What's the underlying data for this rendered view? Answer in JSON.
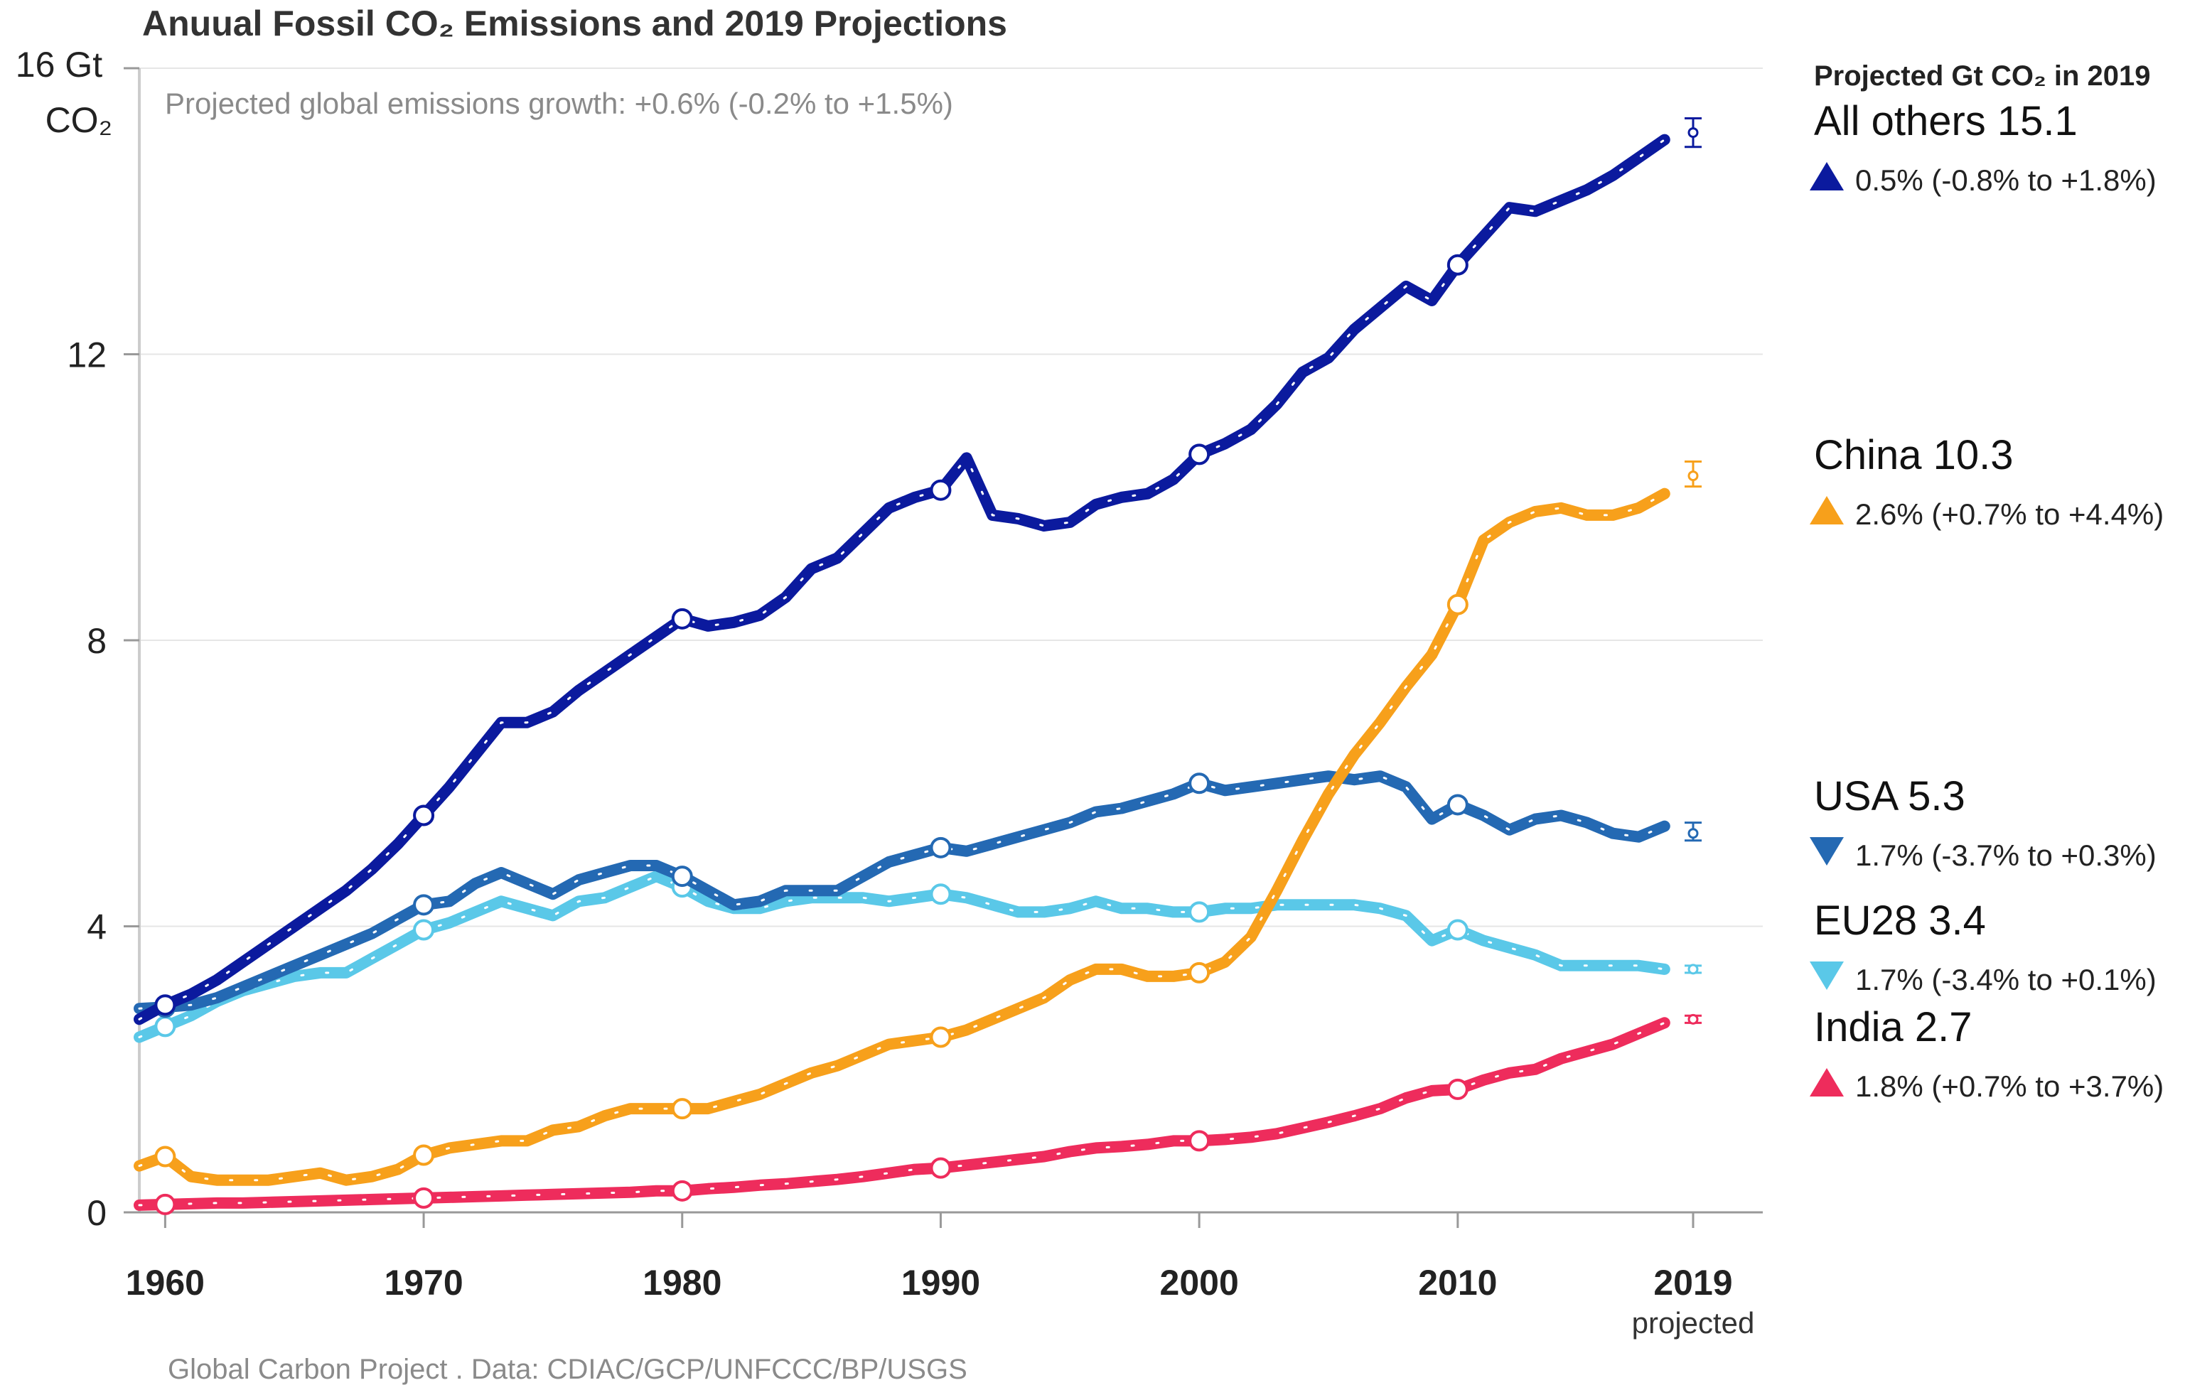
{
  "chart_data": {
    "type": "line",
    "title": "Anuual Fossil CO₂ Emissions and 2019 Projections",
    "subtitle": "Projected global emissions growth: +0.6% (-0.2% to +1.5%)",
    "y_unit_label": "16 Gt CO₂",
    "ylim": [
      0,
      16
    ],
    "y_ticks": [
      0,
      4,
      8,
      12
    ],
    "xlim": [
      1959,
      2019
    ],
    "x_ticks": [
      {
        "value": 1960,
        "label": "1960"
      },
      {
        "value": 1970,
        "label": "1970"
      },
      {
        "value": 1980,
        "label": "1980"
      },
      {
        "value": 1990,
        "label": "1990"
      },
      {
        "value": 2000,
        "label": "2000"
      },
      {
        "value": 2010,
        "label": "2010"
      },
      {
        "value": 2019,
        "label": "2019"
      }
    ],
    "x_sub_label": "projected",
    "source": "Global Carbon Project . Data: CDIAC/GCP/UNFCCC/BP/USGS",
    "grid": true,
    "projection_panel_title": "Projected Gt CO₂ in 2019",
    "series": [
      {
        "name": "All others",
        "projected": "15.1",
        "change": "0.5% (-0.8% to +1.8%)",
        "direction": "up",
        "color": "#0b1a9e",
        "x": [
          1959,
          1960,
          1961,
          1962,
          1963,
          1964,
          1965,
          1966,
          1967,
          1968,
          1969,
          1970,
          1971,
          1972,
          1973,
          1974,
          1975,
          1976,
          1977,
          1978,
          1979,
          1980,
          1981,
          1982,
          1983,
          1984,
          1985,
          1986,
          1987,
          1988,
          1989,
          1990,
          1991,
          1992,
          1993,
          1994,
          1995,
          1996,
          1997,
          1998,
          1999,
          2000,
          2001,
          2002,
          2003,
          2004,
          2005,
          2006,
          2007,
          2008,
          2009,
          2010,
          2011,
          2012,
          2013,
          2014,
          2015,
          2016,
          2017,
          2018
        ],
        "values": [
          2.7,
          2.9,
          3.05,
          3.25,
          3.5,
          3.75,
          4.0,
          4.25,
          4.5,
          4.8,
          5.15,
          5.55,
          5.95,
          6.4,
          6.85,
          6.85,
          7.0,
          7.3,
          7.55,
          7.8,
          8.05,
          8.3,
          8.2,
          8.25,
          8.35,
          8.6,
          9.0,
          9.15,
          9.5,
          9.85,
          10.0,
          10.1,
          10.55,
          9.75,
          9.7,
          9.6,
          9.65,
          9.9,
          10.0,
          10.05,
          10.25,
          10.6,
          10.75,
          10.95,
          11.3,
          11.75,
          11.95,
          12.35,
          12.65,
          12.95,
          12.75,
          13.25,
          13.65,
          14.05,
          14.0,
          14.15,
          14.3,
          14.5,
          14.75,
          15.0
        ],
        "projection": {
          "value": 15.1,
          "low": 14.9,
          "high": 15.3
        }
      },
      {
        "name": "China",
        "projected": "10.3",
        "change": "2.6% (+0.7% to +4.4%)",
        "direction": "up",
        "color": "#f7a01b",
        "x": [
          1959,
          1960,
          1961,
          1962,
          1963,
          1964,
          1965,
          1966,
          1967,
          1968,
          1969,
          1970,
          1971,
          1972,
          1973,
          1974,
          1975,
          1976,
          1977,
          1978,
          1979,
          1980,
          1981,
          1982,
          1983,
          1984,
          1985,
          1986,
          1987,
          1988,
          1989,
          1990,
          1991,
          1992,
          1993,
          1994,
          1995,
          1996,
          1997,
          1998,
          1999,
          2000,
          2001,
          2002,
          2003,
          2004,
          2005,
          2006,
          2007,
          2008,
          2009,
          2010,
          2011,
          2012,
          2013,
          2014,
          2015,
          2016,
          2017,
          2018
        ],
        "values": [
          0.65,
          0.78,
          0.5,
          0.45,
          0.45,
          0.45,
          0.5,
          0.55,
          0.45,
          0.5,
          0.6,
          0.8,
          0.9,
          0.95,
          1.0,
          1.0,
          1.15,
          1.2,
          1.35,
          1.45,
          1.45,
          1.45,
          1.45,
          1.55,
          1.65,
          1.8,
          1.95,
          2.05,
          2.2,
          2.35,
          2.4,
          2.45,
          2.55,
          2.7,
          2.85,
          3.0,
          3.25,
          3.4,
          3.4,
          3.3,
          3.3,
          3.35,
          3.5,
          3.85,
          4.5,
          5.2,
          5.85,
          6.4,
          6.85,
          7.35,
          7.8,
          8.5,
          9.4,
          9.65,
          9.8,
          9.85,
          9.75,
          9.75,
          9.85,
          10.05
        ],
        "projection": {
          "value": 10.3,
          "low": 10.15,
          "high": 10.5
        }
      },
      {
        "name": "USA",
        "projected": "5.3",
        "change": "1.7% (-3.7% to +0.3%)",
        "direction": "down",
        "color": "#2469b3",
        "x": [
          1959,
          1960,
          1961,
          1962,
          1963,
          1964,
          1965,
          1966,
          1967,
          1968,
          1969,
          1970,
          1971,
          1972,
          1973,
          1974,
          1975,
          1976,
          1977,
          1978,
          1979,
          1980,
          1981,
          1982,
          1983,
          1984,
          1985,
          1986,
          1987,
          1988,
          1989,
          1990,
          1991,
          1992,
          1993,
          1994,
          1995,
          1996,
          1997,
          1998,
          1999,
          2000,
          2001,
          2002,
          2003,
          2004,
          2005,
          2006,
          2007,
          2008,
          2009,
          2010,
          2011,
          2012,
          2013,
          2014,
          2015,
          2016,
          2017,
          2018
        ],
        "values": [
          2.85,
          2.87,
          2.9,
          3.0,
          3.15,
          3.3,
          3.45,
          3.6,
          3.75,
          3.9,
          4.1,
          4.3,
          4.35,
          4.6,
          4.75,
          4.6,
          4.45,
          4.65,
          4.75,
          4.85,
          4.85,
          4.7,
          4.5,
          4.3,
          4.35,
          4.5,
          4.5,
          4.5,
          4.7,
          4.9,
          5.0,
          5.1,
          5.05,
          5.15,
          5.25,
          5.35,
          5.45,
          5.6,
          5.65,
          5.75,
          5.85,
          6.0,
          5.9,
          5.95,
          6.0,
          6.05,
          6.1,
          6.05,
          6.1,
          5.95,
          5.5,
          5.7,
          5.55,
          5.35,
          5.5,
          5.55,
          5.45,
          5.3,
          5.25,
          5.4
        ],
        "projection": {
          "value": 5.3,
          "low": 5.2,
          "high": 5.45
        }
      },
      {
        "name": "EU28",
        "projected": "3.4",
        "change": "1.7% (-3.4% to +0.1%)",
        "direction": "down",
        "color": "#5ac8e8",
        "x": [
          1959,
          1960,
          1961,
          1962,
          1963,
          1964,
          1965,
          1966,
          1967,
          1968,
          1969,
          1970,
          1971,
          1972,
          1973,
          1974,
          1975,
          1976,
          1977,
          1978,
          1979,
          1980,
          1981,
          1982,
          1983,
          1984,
          1985,
          1986,
          1987,
          1988,
          1989,
          1990,
          1991,
          1992,
          1993,
          1994,
          1995,
          1996,
          1997,
          1998,
          1999,
          2000,
          2001,
          2002,
          2003,
          2004,
          2005,
          2006,
          2007,
          2008,
          2009,
          2010,
          2011,
          2012,
          2013,
          2014,
          2015,
          2016,
          2017,
          2018
        ],
        "values": [
          2.45,
          2.6,
          2.75,
          2.95,
          3.1,
          3.2,
          3.3,
          3.35,
          3.35,
          3.55,
          3.75,
          3.95,
          4.05,
          4.2,
          4.35,
          4.25,
          4.15,
          4.35,
          4.4,
          4.55,
          4.7,
          4.55,
          4.35,
          4.25,
          4.25,
          4.35,
          4.4,
          4.4,
          4.4,
          4.35,
          4.4,
          4.45,
          4.4,
          4.3,
          4.2,
          4.2,
          4.25,
          4.35,
          4.25,
          4.25,
          4.2,
          4.2,
          4.25,
          4.25,
          4.3,
          4.3,
          4.3,
          4.3,
          4.25,
          4.15,
          3.8,
          3.95,
          3.8,
          3.7,
          3.6,
          3.45,
          3.45,
          3.45,
          3.45,
          3.4
        ],
        "projection": {
          "value": 3.4,
          "low": 3.35,
          "high": 3.45
        }
      },
      {
        "name": "India",
        "projected": "2.7",
        "change": "1.8% (+0.7% to +3.7%)",
        "direction": "up",
        "color": "#ee2c5c",
        "x": [
          1959,
          1960,
          1961,
          1962,
          1963,
          1964,
          1965,
          1966,
          1967,
          1968,
          1969,
          1970,
          1971,
          1972,
          1973,
          1974,
          1975,
          1976,
          1977,
          1978,
          1979,
          1980,
          1981,
          1982,
          1983,
          1984,
          1985,
          1986,
          1987,
          1988,
          1989,
          1990,
          1991,
          1992,
          1993,
          1994,
          1995,
          1996,
          1997,
          1998,
          1999,
          2000,
          2001,
          2002,
          2003,
          2004,
          2005,
          2006,
          2007,
          2008,
          2009,
          2010,
          2011,
          2012,
          2013,
          2014,
          2015,
          2016,
          2017,
          2018
        ],
        "values": [
          0.1,
          0.11,
          0.12,
          0.13,
          0.13,
          0.14,
          0.15,
          0.16,
          0.17,
          0.18,
          0.19,
          0.2,
          0.21,
          0.22,
          0.23,
          0.24,
          0.25,
          0.26,
          0.27,
          0.28,
          0.3,
          0.3,
          0.33,
          0.35,
          0.38,
          0.4,
          0.43,
          0.46,
          0.5,
          0.55,
          0.6,
          0.62,
          0.66,
          0.7,
          0.74,
          0.78,
          0.85,
          0.9,
          0.92,
          0.95,
          1.0,
          1.0,
          1.02,
          1.05,
          1.1,
          1.18,
          1.26,
          1.35,
          1.45,
          1.6,
          1.7,
          1.72,
          1.85,
          1.95,
          2.0,
          2.15,
          2.25,
          2.35,
          2.5,
          2.65
        ],
        "projection": {
          "value": 2.7,
          "low": 2.65,
          "high": 2.75
        }
      }
    ],
    "circle_markers_years": [
      1960,
      1970,
      1980,
      1990,
      2000,
      2010
    ]
  }
}
